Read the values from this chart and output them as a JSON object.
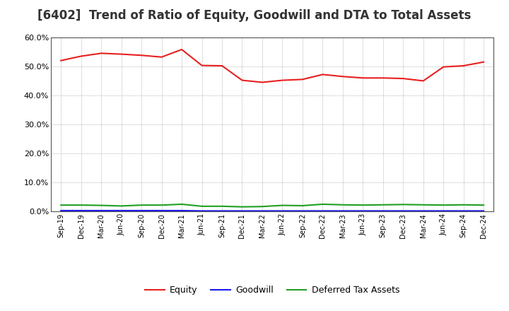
{
  "title": "[6402]  Trend of Ratio of Equity, Goodwill and DTA to Total Assets",
  "x_labels": [
    "Sep-19",
    "Dec-19",
    "Mar-20",
    "Jun-20",
    "Sep-20",
    "Dec-20",
    "Mar-21",
    "Jun-21",
    "Sep-21",
    "Dec-21",
    "Mar-22",
    "Jun-22",
    "Sep-22",
    "Dec-22",
    "Mar-23",
    "Jun-23",
    "Sep-23",
    "Dec-23",
    "Mar-24",
    "Jun-24",
    "Sep-24",
    "Dec-24"
  ],
  "equity": [
    52.0,
    53.5,
    54.5,
    54.2,
    53.8,
    53.2,
    55.8,
    50.3,
    50.2,
    45.2,
    44.5,
    45.2,
    45.5,
    47.2,
    46.5,
    46.0,
    46.0,
    45.8,
    45.0,
    49.8,
    50.2,
    51.5
  ],
  "goodwill": [
    0.3,
    0.3,
    0.3,
    0.3,
    0.3,
    0.3,
    0.3,
    0.2,
    0.2,
    0.2,
    0.2,
    0.2,
    0.2,
    0.2,
    0.2,
    0.2,
    0.2,
    0.2,
    0.2,
    0.2,
    0.2,
    0.2
  ],
  "dta": [
    2.2,
    2.2,
    2.1,
    1.9,
    2.2,
    2.2,
    2.5,
    1.8,
    1.8,
    1.6,
    1.7,
    2.1,
    2.0,
    2.5,
    2.3,
    2.2,
    2.3,
    2.4,
    2.3,
    2.2,
    2.3,
    2.2
  ],
  "equity_color": "#e82020",
  "goodwill_color": "#1a1aee",
  "dta_color": "#20a020",
  "ylim": [
    0,
    60
  ],
  "yticks": [
    0,
    10,
    20,
    30,
    40,
    50,
    60
  ],
  "background_color": "#ffffff",
  "plot_bg_color": "#ffffff",
  "grid_color": "#aaaaaa",
  "title_fontsize": 12,
  "legend_labels": [
    "Equity",
    "Goodwill",
    "Deferred Tax Assets"
  ]
}
